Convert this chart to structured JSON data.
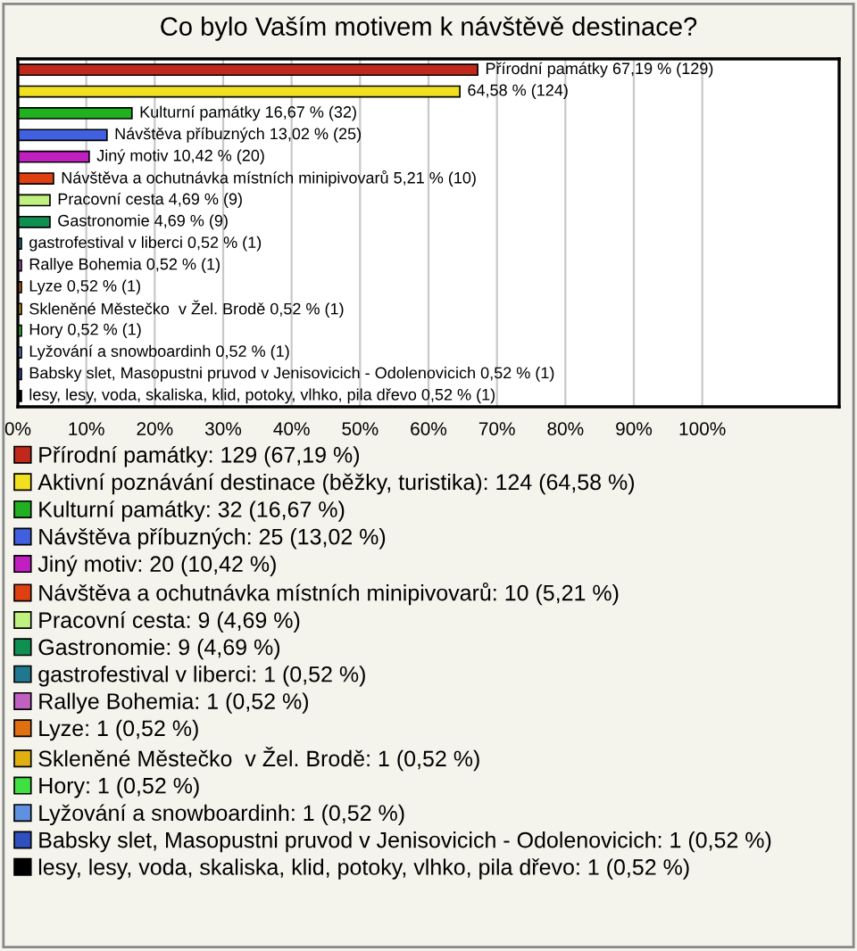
{
  "chart_data": {
    "type": "bar",
    "orientation": "horizontal",
    "title": "Co bylo Vaším motivem k návštěvě destinace?",
    "categories": [
      null,
      null,
      null,
      null,
      null,
      null,
      null,
      null,
      null,
      null,
      null,
      null,
      null,
      null,
      null,
      null
    ],
    "xlim": [
      0,
      120
    ],
    "xticks": [
      {
        "value": 0,
        "label": "0%"
      },
      {
        "value": 10,
        "label": "10%"
      },
      {
        "value": 20,
        "label": "20%"
      },
      {
        "value": 30,
        "label": "30%"
      },
      {
        "value": 40,
        "label": "40%"
      },
      {
        "value": 50,
        "label": "50%"
      },
      {
        "value": 60,
        "label": "60%"
      },
      {
        "value": 70,
        "label": "70%"
      },
      {
        "value": 80,
        "label": "80%"
      },
      {
        "value": 90,
        "label": "90%"
      },
      {
        "value": 100,
        "label": "100%"
      }
    ],
    "grid": "x",
    "legend": "bottom",
    "tick_labels": "x",
    "series": [
      {
        "name": "Přírodní památky: 129 (67,19 %)",
        "color": "#c0281c",
        "values": [
          67.19,
          null,
          null,
          null,
          null,
          null,
          null,
          null,
          null,
          null,
          null,
          null,
          null,
          null,
          null,
          null
        ],
        "value_labels": [
          "Přírodní památky 67,19 % (129)",
          null,
          null,
          null,
          null,
          null,
          null,
          null,
          null,
          null,
          null,
          null,
          null,
          null,
          null,
          null
        ]
      },
      {
        "name": "Aktivní poznávání destinace (běžky, turistika): 124 (64,58 %)",
        "color": "#f0e020",
        "values": [
          null,
          64.58,
          null,
          null,
          null,
          null,
          null,
          null,
          null,
          null,
          null,
          null,
          null,
          null,
          null,
          null
        ],
        "value_labels": [
          null,
          "64,58 % (124)",
          null,
          null,
          null,
          null,
          null,
          null,
          null,
          null,
          null,
          null,
          null,
          null,
          null,
          null
        ]
      },
      {
        "name": "Kulturní památky: 32 (16,67 %)",
        "color": "#20b020",
        "values": [
          null,
          null,
          16.67,
          null,
          null,
          null,
          null,
          null,
          null,
          null,
          null,
          null,
          null,
          null,
          null,
          null
        ],
        "value_labels": [
          null,
          null,
          "Kulturní památky 16,67 % (32)",
          null,
          null,
          null,
          null,
          null,
          null,
          null,
          null,
          null,
          null,
          null,
          null,
          null
        ]
      },
      {
        "name": "Návštěva příbuzných: 25 (13,02 %)",
        "color": "#4060e0",
        "values": [
          null,
          null,
          null,
          13.02,
          null,
          null,
          null,
          null,
          null,
          null,
          null,
          null,
          null,
          null,
          null,
          null
        ],
        "value_labels": [
          null,
          null,
          null,
          "Návštěva příbuzných 13,02 % (25)",
          null,
          null,
          null,
          null,
          null,
          null,
          null,
          null,
          null,
          null,
          null,
          null
        ]
      },
      {
        "name": "Jiný motiv: 20 (10,42 %)",
        "color": "#c020c0",
        "values": [
          null,
          null,
          null,
          null,
          10.42,
          null,
          null,
          null,
          null,
          null,
          null,
          null,
          null,
          null,
          null,
          null
        ],
        "value_labels": [
          null,
          null,
          null,
          null,
          "Jiný motiv 10,42 % (20)",
          null,
          null,
          null,
          null,
          null,
          null,
          null,
          null,
          null,
          null,
          null
        ]
      },
      {
        "name": "Návštěva a ochutnávka místních minipivovarů: 10 (5,21 %)",
        "color": "#e04010",
        "values": [
          null,
          null,
          null,
          null,
          null,
          5.21,
          null,
          null,
          null,
          null,
          null,
          null,
          null,
          null,
          null,
          null
        ],
        "value_labels": [
          null,
          null,
          null,
          null,
          null,
          "Návštěva a ochutnávka místních minipivovarů 5,21 % (10)",
          null,
          null,
          null,
          null,
          null,
          null,
          null,
          null,
          null,
          null
        ]
      },
      {
        "name": "Pracovní cesta: 9 (4,69 %)",
        "color": "#c0f080",
        "values": [
          null,
          null,
          null,
          null,
          null,
          null,
          4.69,
          null,
          null,
          null,
          null,
          null,
          null,
          null,
          null,
          null
        ],
        "value_labels": [
          null,
          null,
          null,
          null,
          null,
          null,
          "Pracovní cesta 4,69 % (9)",
          null,
          null,
          null,
          null,
          null,
          null,
          null,
          null,
          null
        ]
      },
      {
        "name": "Gastronomie: 9 (4,69 %)",
        "color": "#109050",
        "values": [
          null,
          null,
          null,
          null,
          null,
          null,
          null,
          4.69,
          null,
          null,
          null,
          null,
          null,
          null,
          null,
          null
        ],
        "value_labels": [
          null,
          null,
          null,
          null,
          null,
          null,
          null,
          "Gastronomie 4,69 % (9)",
          null,
          null,
          null,
          null,
          null,
          null,
          null,
          null
        ]
      },
      {
        "name": "gastrofestival v liberci: 1 (0,52 %)",
        "color": "#207890",
        "values": [
          null,
          null,
          null,
          null,
          null,
          null,
          null,
          null,
          0.52,
          null,
          null,
          null,
          null,
          null,
          null,
          null
        ],
        "value_labels": [
          null,
          null,
          null,
          null,
          null,
          null,
          null,
          null,
          "gastrofestival v liberci 0,52 % (1)",
          null,
          null,
          null,
          null,
          null,
          null,
          null
        ]
      },
      {
        "name": "Rallye Bohemia: 1 (0,52 %)",
        "color": "#c060c0",
        "values": [
          null,
          null,
          null,
          null,
          null,
          null,
          null,
          null,
          null,
          0.52,
          null,
          null,
          null,
          null,
          null,
          null
        ],
        "value_labels": [
          null,
          null,
          null,
          null,
          null,
          null,
          null,
          null,
          null,
          "Rallye Bohemia 0,52 % (1)",
          null,
          null,
          null,
          null,
          null,
          null
        ]
      },
      {
        "name": "Lyze: 1 (0,52 %)",
        "color": "#e07010",
        "values": [
          null,
          null,
          null,
          null,
          null,
          null,
          null,
          null,
          null,
          null,
          0.52,
          null,
          null,
          null,
          null,
          null
        ],
        "value_labels": [
          null,
          null,
          null,
          null,
          null,
          null,
          null,
          null,
          null,
          null,
          "Lyze 0,52 % (1)",
          null,
          null,
          null,
          null,
          null
        ]
      },
      {
        "name": "Skleněné Městečko  v Žel. Brodě: 1 (0,52 %)",
        "color": "#e0b010",
        "values": [
          null,
          null,
          null,
          null,
          null,
          null,
          null,
          null,
          null,
          null,
          null,
          0.52,
          null,
          null,
          null,
          null
        ],
        "value_labels": [
          null,
          null,
          null,
          null,
          null,
          null,
          null,
          null,
          null,
          null,
          null,
          "Skleněné Městečko  v Žel. Brodě 0,52 % (1)",
          null,
          null,
          null,
          null
        ]
      },
      {
        "name": "Hory: 1 (0,52 %)",
        "color": "#40e040",
        "values": [
          null,
          null,
          null,
          null,
          null,
          null,
          null,
          null,
          null,
          null,
          null,
          null,
          0.52,
          null,
          null,
          null
        ],
        "value_labels": [
          null,
          null,
          null,
          null,
          null,
          null,
          null,
          null,
          null,
          null,
          null,
          null,
          "Hory 0,52 % (1)",
          null,
          null,
          null
        ]
      },
      {
        "name": "Lyžování a snowboardinh: 1 (0,52 %)",
        "color": "#6090e0",
        "values": [
          null,
          null,
          null,
          null,
          null,
          null,
          null,
          null,
          null,
          null,
          null,
          null,
          null,
          0.52,
          null,
          null
        ],
        "value_labels": [
          null,
          null,
          null,
          null,
          null,
          null,
          null,
          null,
          null,
          null,
          null,
          null,
          null,
          "Lyžování a snowboardinh 0,52 % (1)",
          null,
          null
        ]
      },
      {
        "name": "Babsky slet, Masopustni pruvod v Jenisovicich - Odolenovicich: 1 (0,52 %)",
        "color": "#3050c0",
        "values": [
          null,
          null,
          null,
          null,
          null,
          null,
          null,
          null,
          null,
          null,
          null,
          null,
          null,
          null,
          0.52,
          null
        ],
        "value_labels": [
          null,
          null,
          null,
          null,
          null,
          null,
          null,
          null,
          null,
          null,
          null,
          null,
          null,
          null,
          "Babsky slet, Masopustni pruvod v Jenisovicich - Odolenovicich 0,52 % (1)",
          null
        ]
      },
      {
        "name": "lesy, lesy, voda, skaliska, klid, potoky, vlhko, pila dřevo: 1 (0,52 %)",
        "color": "#000000",
        "values": [
          null,
          null,
          null,
          null,
          null,
          null,
          null,
          null,
          null,
          null,
          null,
          null,
          null,
          null,
          null,
          0.52
        ],
        "value_labels": [
          null,
          null,
          null,
          null,
          null,
          null,
          null,
          null,
          null,
          null,
          null,
          null,
          null,
          null,
          null,
          "lesy, lesy, voda, skaliska, klid, potoky, vlhko, pila dřevo 0,52 % (1)"
        ]
      }
    ]
  }
}
